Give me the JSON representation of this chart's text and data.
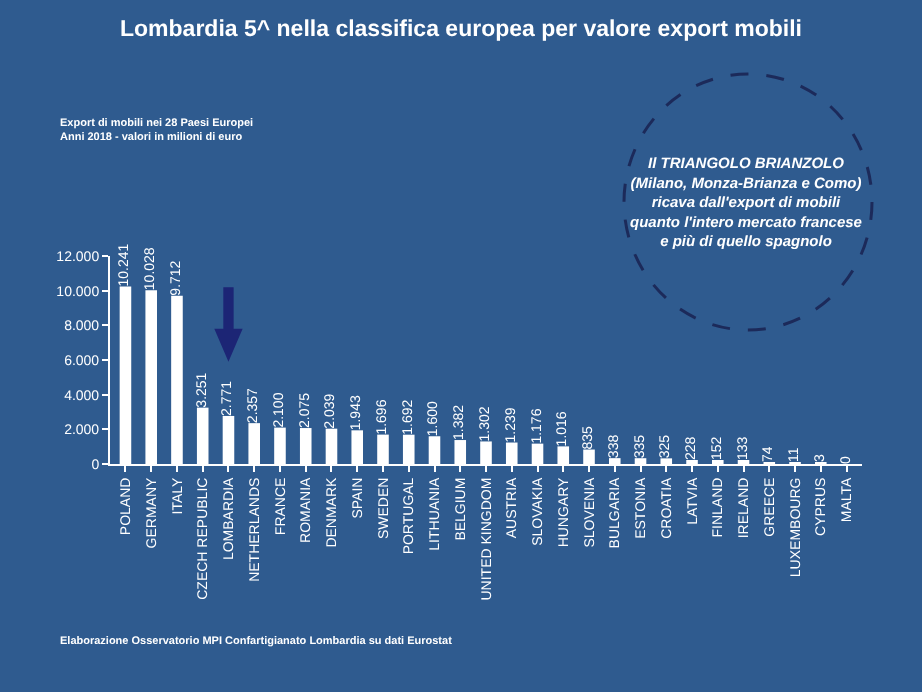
{
  "chart_data": {
    "type": "bar",
    "title": "Lombardia 5^ nella classifica europea per valore export mobili",
    "subtitle": "Export di mobili nei 28 Paesi Europei\nAnni 2018 - valori in milioni di euro",
    "categories": [
      "POLAND",
      "GERMANY",
      "ITALY",
      "CZECH REPUBLIC",
      "LOMBARDIA",
      "NETHERLANDS",
      "FRANCE",
      "ROMANIA",
      "DENMARK",
      "SPAIN",
      "SWEDEN",
      "PORTUGAL",
      "LITHUANIA",
      "BELGIUM",
      "UNITED KINGDOM",
      "AUSTRIA",
      "SLOVAKIA",
      "HUNGARY",
      "SLOVENIA",
      "BULGARIA",
      "ESTONIA",
      "CROATIA",
      "LATVIA",
      "FINLAND",
      "IRELAND",
      "GREECE",
      "LUXEMBOURG",
      "CYPRUS",
      "MALTA"
    ],
    "values": [
      10241,
      10028,
      9712,
      3251,
      2771,
      2357,
      2100,
      2075,
      2039,
      1943,
      1696,
      1692,
      1600,
      1382,
      1302,
      1239,
      1176,
      1016,
      835,
      338,
      335,
      325,
      228,
      152,
      133,
      74,
      11,
      3,
      0
    ],
    "value_labels": [
      "10.241",
      "10.028",
      "9.712",
      "3.251",
      "2.771",
      "2.357",
      "2.100",
      "2.075",
      "2.039",
      "1.943",
      "1.696",
      "1.692",
      "1.600",
      "1.382",
      "1.302",
      "1.239",
      "1.176",
      "1.016",
      "835",
      "338",
      "335",
      "325",
      "228",
      "152",
      "133",
      "74",
      "11",
      "3",
      "0"
    ],
    "color": "#ffffff",
    "ylim": [
      0,
      12000
    ],
    "yticks": [
      0,
      {
        "value": 2000,
        "label": "2.000"
      },
      {
        "value": 4000,
        "label": "4.000"
      },
      {
        "value": 6000,
        "label": "6.000"
      },
      {
        "value": 8000,
        "label": "8.000"
      },
      {
        "value": 10000,
        "label": "10.000"
      },
      {
        "value": 12000,
        "label": "12.000"
      }
    ],
    "grid": false,
    "annotations": [
      "Il TRIANGOLO BRIANZOLO\n(Milano, Monza-Brianza e Como)\nricava dall'export di mobili\nquanto l'intero mercato francese\ne più di quello spagnolo",
      "Elaborazione Osservatorio MPI Confartigianato Lombardia su dati Eurostat"
    ]
  }
}
